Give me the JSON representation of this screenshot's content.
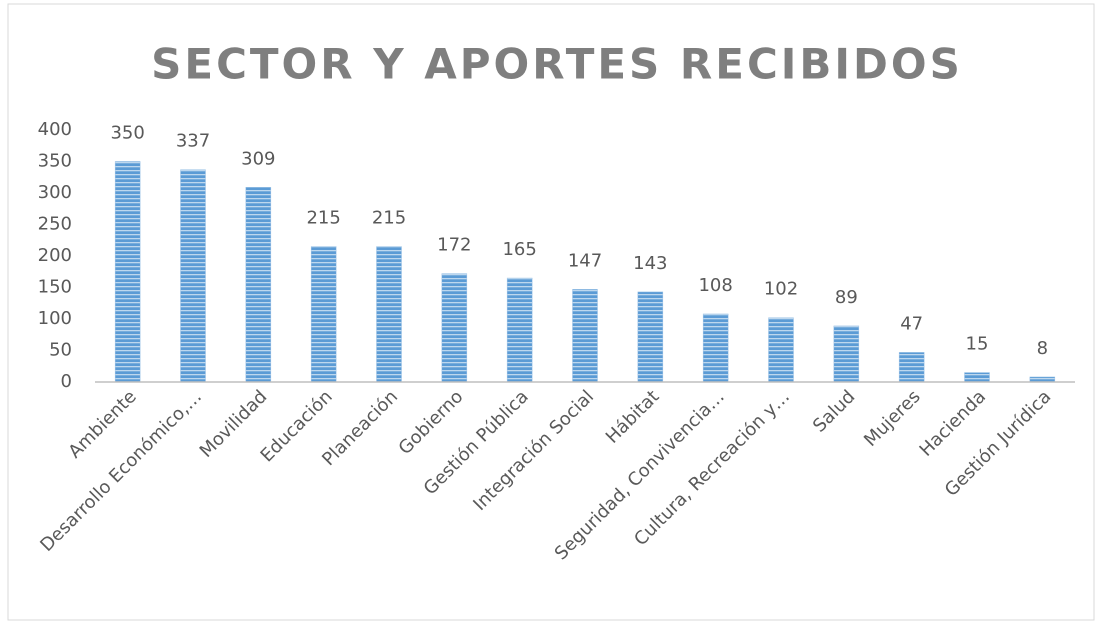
{
  "chart_data": {
    "type": "bar",
    "title": "SECTOR Y APORTES RECIBIDOS",
    "categories": [
      "Ambiente",
      "Desarrollo Económico,…",
      "Movilidad",
      "Educación",
      "Planeación",
      "Gobierno",
      "Gestión Pública",
      "Integración Social",
      "Hábitat",
      "Seguridad, Convivencia…",
      "Cultura, Recreación y…",
      "Salud",
      "Mujeres",
      "Hacienda",
      "Gestión Jurídica"
    ],
    "values": [
      350,
      337,
      309,
      215,
      215,
      172,
      165,
      147,
      143,
      108,
      102,
      89,
      47,
      15,
      8
    ],
    "color": "#5b9bd5",
    "ylim": [
      0,
      400
    ],
    "yticks": [
      0,
      50,
      100,
      150,
      200,
      250,
      300,
      350,
      400
    ],
    "grid": false
  }
}
